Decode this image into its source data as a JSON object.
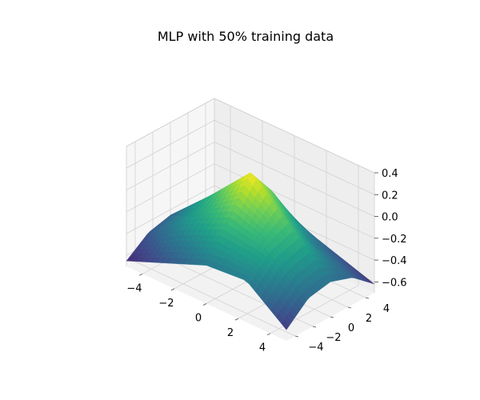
{
  "chart_data": {
    "type": "surface3d",
    "title": "MLP with 50% training data",
    "xlabel": "",
    "ylabel": "",
    "zlabel": "",
    "xlim": [
      -5,
      5
    ],
    "ylim": [
      -5,
      5
    ],
    "zlim": [
      -0.7,
      0.4
    ],
    "x_ticks": [
      -4,
      -2,
      0,
      2,
      4
    ],
    "y_ticks": [
      -4,
      -2,
      0,
      2,
      4
    ],
    "z_ticks": [
      -0.6,
      -0.4,
      -0.2,
      0.0,
      0.2,
      0.4
    ],
    "x_tick_labels": [
      "−4",
      "−2",
      "0",
      "2",
      "4"
    ],
    "y_tick_labels": [
      "−4",
      "−2",
      "0",
      "2",
      "4"
    ],
    "z_tick_labels": [
      "−0.6",
      "−0.4",
      "−0.2",
      "0.0",
      "0.2",
      "0.4"
    ],
    "grid": true,
    "colormap": "viridis",
    "surface_x": [
      -5,
      -2.5,
      0,
      2.5,
      5
    ],
    "surface_y": [
      -5,
      -2.5,
      0,
      2.5,
      5
    ],
    "surface_z": [
      [
        -0.65,
        -0.5,
        -0.45,
        -0.58,
        -0.78
      ],
      [
        -0.5,
        -0.22,
        -0.1,
        -0.3,
        -0.52
      ],
      [
        -0.35,
        -0.05,
        0.28,
        0.0,
        -0.38
      ],
      [
        -0.32,
        -0.12,
        -0.05,
        -0.32,
        -0.5
      ],
      [
        -0.6,
        -0.42,
        -0.38,
        -0.45,
        -0.62
      ]
    ]
  }
}
